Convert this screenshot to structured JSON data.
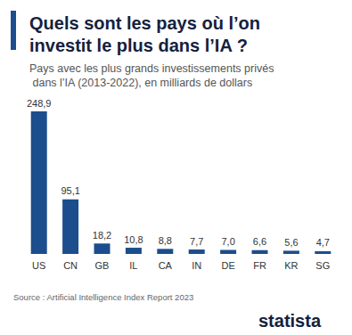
{
  "chart_data": {
    "type": "bar",
    "title": "Quels sont les pays où l’on investit le plus dans l’IA ?",
    "subtitle": "Pays avec les plus grands investissements privés dans l’IA (2013-2022), en milliards de dollars",
    "categories": [
      "US",
      "CN",
      "GB",
      "IL",
      "CA",
      "IN",
      "DE",
      "FR",
      "KR",
      "SG"
    ],
    "values": [
      248.9,
      95.1,
      18.2,
      10.8,
      8.8,
      7.7,
      7.0,
      6.6,
      5.6,
      4.7
    ],
    "value_labels": [
      "248,9",
      "95,1",
      "18,2",
      "10,8",
      "8,8",
      "7,7",
      "7,0",
      "6,6",
      "5,6",
      "4,7"
    ],
    "color": "#1c4d8c",
    "data_labels": true,
    "tick_labels": "x",
    "grid": false,
    "annotations": [
      "Source : Artificial Intelligence Index Report 2023",
      "statista"
    ]
  }
}
